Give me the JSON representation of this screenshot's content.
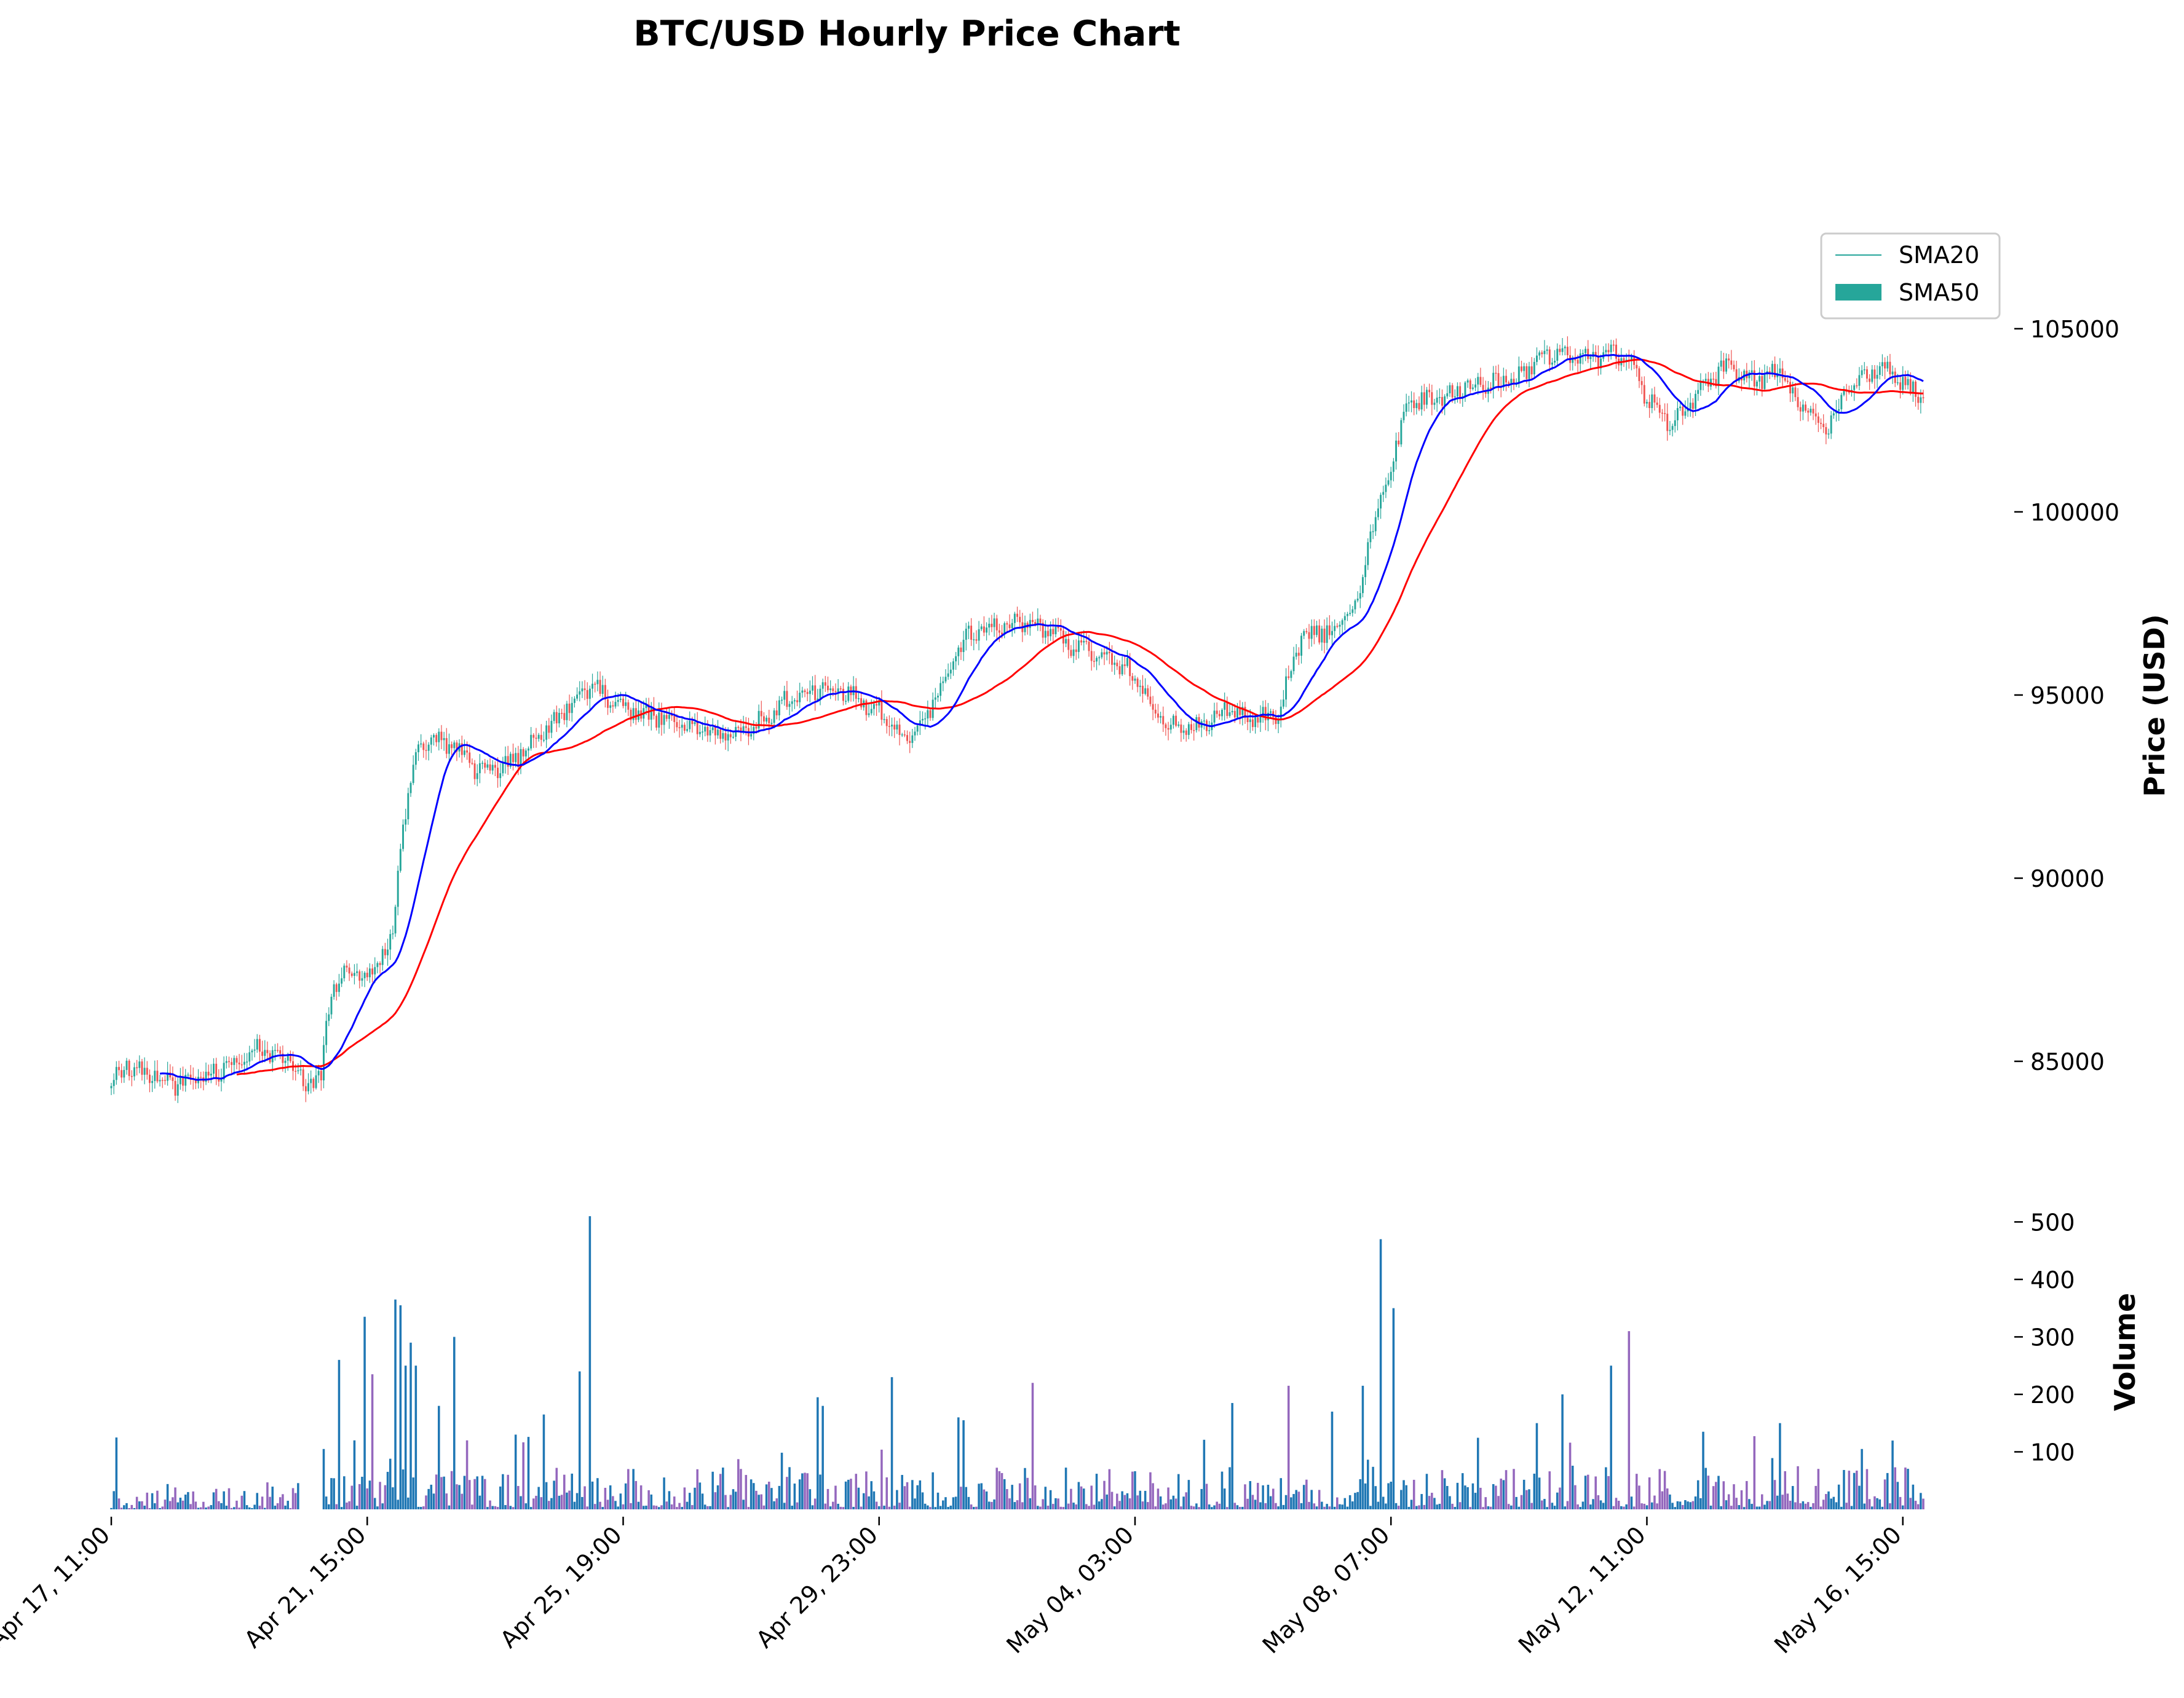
{
  "chart_data": {
    "type": "candlestick",
    "title": "BTC/USD Hourly Price Chart",
    "price_panel": {
      "ylabel": "Price (USD)",
      "ylim": [
        82500,
        107800
      ],
      "yticks": [
        85000,
        90000,
        95000,
        100000,
        105000
      ],
      "ytick_labels": [
        "85000",
        "90000",
        "95000",
        "100000",
        "105000"
      ]
    },
    "volume_panel": {
      "ylabel": "Volume",
      "ylim": [
        0,
        510
      ],
      "yticks": [
        100,
        200,
        300,
        400,
        500
      ],
      "ytick_labels": [
        "100",
        "200",
        "300",
        "400",
        "500"
      ]
    },
    "x_axis": {
      "start": "2025-04-17T11:00",
      "end": "2025-05-16T23:00",
      "interval": "hourly",
      "ticks": [
        "2025-04-17T11:00",
        "2025-04-21T15:00",
        "2025-04-25T19:00",
        "2025-04-29T23:00",
        "2025-05-04T03:00",
        "2025-05-08T07:00",
        "2025-05-12T11:00",
        "2025-05-16T15:00"
      ],
      "tick_labels": [
        "Apr 17, 11:00",
        "Apr 21, 15:00",
        "Apr 25, 19:00",
        "Apr 29, 23:00",
        "May 04, 03:00",
        "May 08, 07:00",
        "May 12, 11:00",
        "May 16, 15:00"
      ]
    },
    "close_anchors": [
      [
        "2025-04-17T11:00",
        84400
      ],
      [
        "2025-04-17T17:00",
        84900
      ],
      [
        "2025-04-18T12:00",
        84400
      ],
      [
        "2025-04-19T04:00",
        84700
      ],
      [
        "2025-04-19T20:00",
        85300
      ],
      [
        "2025-04-20T08:00",
        85100
      ],
      [
        "2025-04-20T14:00",
        84300
      ],
      [
        "2025-04-20T21:00",
        84600
      ],
      [
        "2025-04-21T01:00",
        87000
      ],
      [
        "2025-04-21T08:00",
        87500
      ],
      [
        "2025-04-21T15:00",
        87200
      ],
      [
        "2025-04-21T21:00",
        88000
      ],
      [
        "2025-04-22T01:00",
        88500
      ],
      [
        "2025-04-22T05:00",
        91500
      ],
      [
        "2025-04-22T11:00",
        93600
      ],
      [
        "2025-04-22T17:00",
        93800
      ],
      [
        "2025-04-23T02:00",
        93500
      ],
      [
        "2025-04-23T10:00",
        92900
      ],
      [
        "2025-04-23T22:00",
        93100
      ],
      [
        "2025-04-24T11:00",
        93900
      ],
      [
        "2025-04-24T23:00",
        94800
      ],
      [
        "2025-04-25T07:00",
        95300
      ],
      [
        "2025-04-25T19:00",
        94600
      ],
      [
        "2025-04-26T11:00",
        94400
      ],
      [
        "2025-04-27T01:00",
        94100
      ],
      [
        "2025-04-27T13:00",
        93800
      ],
      [
        "2025-04-28T01:00",
        94300
      ],
      [
        "2025-04-28T14:00",
        95000
      ],
      [
        "2025-04-29T04:00",
        95200
      ],
      [
        "2025-04-29T23:00",
        94600
      ],
      [
        "2025-04-30T08:00",
        93800
      ],
      [
        "2025-04-30T18:00",
        94500
      ],
      [
        "2025-05-01T08:00",
        96500
      ],
      [
        "2025-05-01T20:00",
        96900
      ],
      [
        "2025-05-02T10:00",
        97000
      ],
      [
        "2025-05-02T22:00",
        96500
      ],
      [
        "2025-05-03T10:00",
        96200
      ],
      [
        "2025-05-03T22:00",
        95800
      ],
      [
        "2025-05-04T03:00",
        95500
      ],
      [
        "2025-05-04T14:00",
        94200
      ],
      [
        "2025-05-05T02:00",
        94100
      ],
      [
        "2025-05-05T14:00",
        94600
      ],
      [
        "2025-05-06T02:00",
        94300
      ],
      [
        "2025-05-06T11:00",
        94500
      ],
      [
        "2025-05-06T20:00",
        96600
      ],
      [
        "2025-05-07T08:00",
        96800
      ],
      [
        "2025-05-07T18:00",
        97400
      ],
      [
        "2025-05-07T23:00",
        99500
      ],
      [
        "2025-05-08T07:00",
        101300
      ],
      [
        "2025-05-08T14:00",
        103000
      ],
      [
        "2025-05-09T02:00",
        103100
      ],
      [
        "2025-05-09T17:00",
        103500
      ],
      [
        "2025-05-10T08:00",
        103600
      ],
      [
        "2025-05-10T20:00",
        104300
      ],
      [
        "2025-05-11T09:00",
        104200
      ],
      [
        "2025-05-11T22:00",
        104300
      ],
      [
        "2025-05-12T05:00",
        104000
      ],
      [
        "2025-05-12T11:00",
        103100
      ],
      [
        "2025-05-12T20:00",
        102400
      ],
      [
        "2025-05-13T07:00",
        103200
      ],
      [
        "2025-05-13T18:00",
        104000
      ],
      [
        "2025-05-14T05:00",
        103600
      ],
      [
        "2025-05-14T15:00",
        103800
      ],
      [
        "2025-05-15T00:00",
        102800
      ],
      [
        "2025-05-15T09:00",
        102300
      ],
      [
        "2025-05-15T20:00",
        103500
      ],
      [
        "2025-05-16T08:00",
        104000
      ],
      [
        "2025-05-16T17:00",
        103400
      ],
      [
        "2025-05-16T23:00",
        103100
      ]
    ],
    "volume_spikes": [
      [
        "2025-04-17T13:00",
        125
      ],
      [
        "2025-04-20T22:00",
        105
      ],
      [
        "2025-04-21T04:00",
        260
      ],
      [
        "2025-04-21T10:00",
        120
      ],
      [
        "2025-04-21T14:00",
        335
      ],
      [
        "2025-04-21T17:00",
        235
      ],
      [
        "2025-04-22T02:00",
        365
      ],
      [
        "2025-04-22T04:00",
        355
      ],
      [
        "2025-04-22T06:00",
        250
      ],
      [
        "2025-04-22T08:00",
        290
      ],
      [
        "2025-04-22T10:00",
        250
      ],
      [
        "2025-04-22T19:00",
        180
      ],
      [
        "2025-04-23T01:00",
        300
      ],
      [
        "2025-04-23T06:00",
        120
      ],
      [
        "2025-04-24T01:00",
        130
      ],
      [
        "2025-04-24T12:00",
        165
      ],
      [
        "2025-04-25T02:00",
        240
      ],
      [
        "2025-04-25T06:00",
        510
      ],
      [
        "2025-04-28T23:00",
        195
      ],
      [
        "2025-04-29T01:00",
        180
      ],
      [
        "2025-04-30T04:00",
        230
      ],
      [
        "2025-05-01T06:00",
        160
      ],
      [
        "2025-05-01T08:00",
        155
      ],
      [
        "2025-05-02T11:00",
        220
      ],
      [
        "2025-05-05T17:00",
        185
      ],
      [
        "2025-05-06T15:00",
        215
      ],
      [
        "2025-05-07T08:00",
        170
      ],
      [
        "2025-05-07T20:00",
        215
      ],
      [
        "2025-05-08T03:00",
        470
      ],
      [
        "2025-05-08T08:00",
        350
      ],
      [
        "2025-05-10T16:00",
        150
      ],
      [
        "2025-05-11T02:00",
        200
      ],
      [
        "2025-05-11T21:00",
        250
      ],
      [
        "2025-05-12T04:00",
        310
      ],
      [
        "2025-05-13T09:00",
        135
      ],
      [
        "2025-05-14T15:00",
        150
      ],
      [
        "2025-05-15T23:00",
        105
      ]
    ],
    "volume_gap": [
      "2025-04-20T12:00",
      "2025-04-20T22:00"
    ],
    "series": [
      {
        "name": "SMA20",
        "type": "line",
        "window": 20,
        "color": "#0000ff"
      },
      {
        "name": "SMA50",
        "type": "line",
        "window": 50,
        "color": "#ff0000"
      }
    ],
    "legend": {
      "placement": "top-right",
      "entries": [
        {
          "label": "SMA20",
          "symbol": "line",
          "color": "#26a69a"
        },
        {
          "label": "SMA50",
          "symbol": "patch",
          "color": "#26a69a"
        }
      ]
    },
    "colors": {
      "up": "#26a69a",
      "down": "#ef5350",
      "volume": "#1f77b4",
      "volume_down": "#9467bd",
      "sma20": "#0000ff",
      "sma50": "#ff0000"
    }
  }
}
